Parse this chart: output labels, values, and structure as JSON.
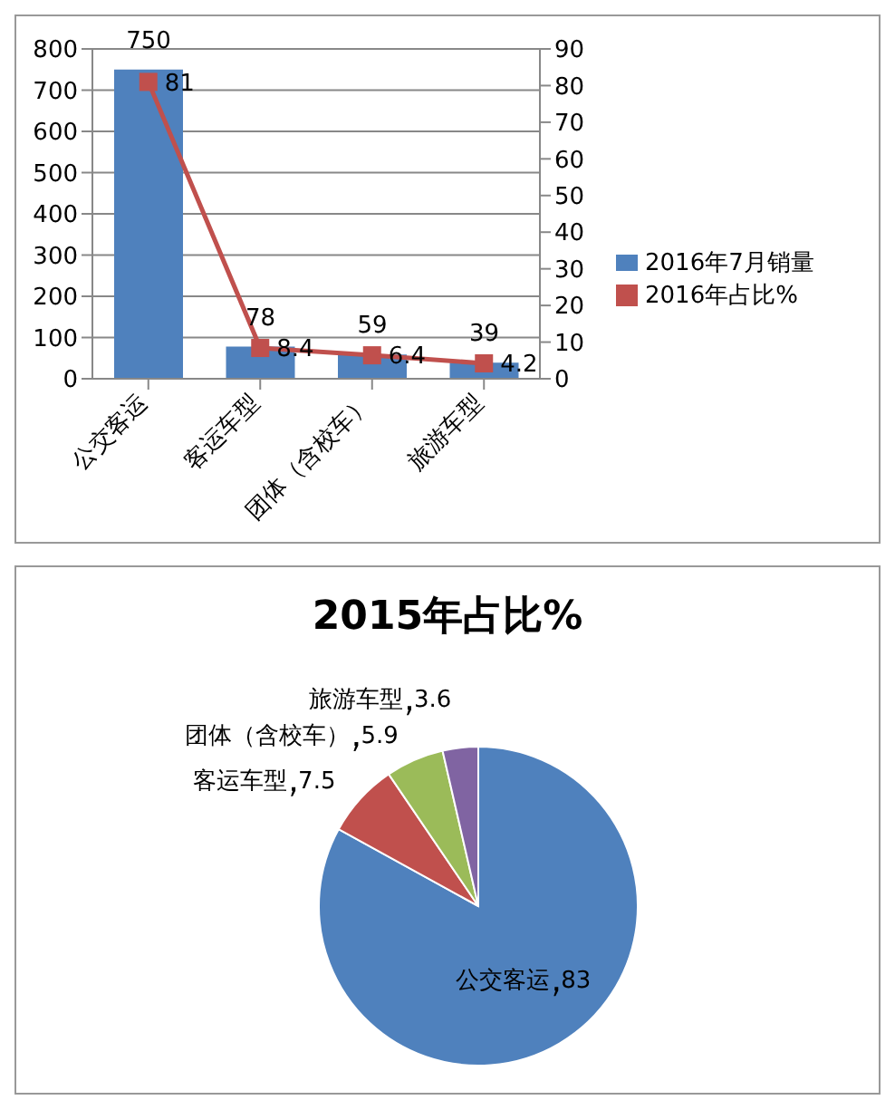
{
  "chart_data": [
    {
      "type": "bar",
      "categories": [
        "公交客运",
        "客运车型",
        "团体（含校车）",
        "旅游车型"
      ],
      "series": [
        {
          "name": "2016年7月销量",
          "color": "#4f81bd",
          "values": [
            750,
            78,
            59,
            39
          ]
        },
        {
          "name": "2016年占比%",
          "type": "line",
          "axis": "y2",
          "color": "#c0504d",
          "values": [
            81,
            8.4,
            6.4,
            4.2
          ]
        }
      ],
      "ylim": [
        0,
        800
      ],
      "yticks": [
        0,
        100,
        200,
        300,
        400,
        500,
        600,
        700,
        800
      ],
      "y2lim": [
        0,
        90
      ],
      "y2ticks": [
        0,
        10,
        20,
        30,
        40,
        50,
        60,
        70,
        80,
        90
      ],
      "grid": "y",
      "legend": "right",
      "marker": "square",
      "data_labels": true
    },
    {
      "type": "pie",
      "title": "2015年占比%",
      "categories": [
        "公交客运",
        "客运车型",
        "团体（含校车）",
        "旅游车型"
      ],
      "values": [
        83,
        7.5,
        5.9,
        3.6
      ],
      "colors": [
        "#4f81bd",
        "#c0504d",
        "#9bbb59",
        "#8064a2"
      ],
      "data_labels": true
    }
  ]
}
